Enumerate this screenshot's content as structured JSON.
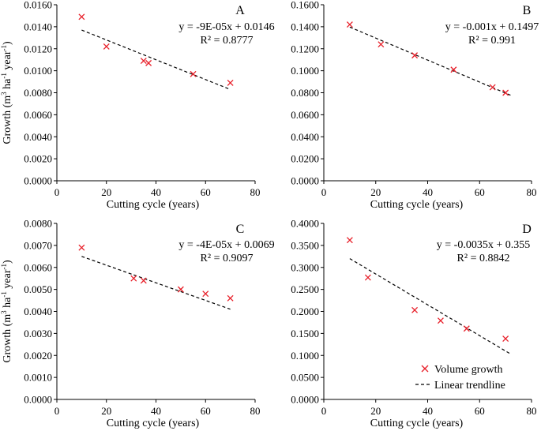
{
  "figure": {
    "ylabel_prefix": "Growth (m",
    "ylabel_sup3": "3",
    "ylabel_mid": " ha",
    "ylabel_supinv1": "-1",
    "ylabel_mid2": " year",
    "ylabel_end": ")",
    "legend": {
      "marker_label": "Volume growth",
      "line_label": "Linear trendline",
      "placement": "bottom-right of panel D"
    }
  },
  "chart_data": [
    {
      "type": "scatter",
      "panel": "A",
      "xlabel": "Cutting cycle (years)",
      "ylabel": "Growth (m3 ha-1 year-1)",
      "xlim": [
        0,
        80
      ],
      "ylim": [
        0,
        0.016
      ],
      "xticks": [
        "0",
        "20",
        "40",
        "60",
        "80"
      ],
      "yticks": [
        "0.0000",
        "0.0020",
        "0.0040",
        "0.0060",
        "0.0080",
        "0.0100",
        "0.0120",
        "0.0140",
        "0.0160"
      ],
      "series": [
        {
          "name": "Volume growth",
          "marker": "x",
          "x": [
            10,
            20,
            35,
            37,
            55,
            70
          ],
          "y": [
            0.0149,
            0.0122,
            0.0109,
            0.0107,
            0.0097,
            0.0089
          ]
        }
      ],
      "trendline": {
        "name": "Linear trendline",
        "slope": -9e-05,
        "intercept": 0.0146,
        "x_range": [
          10,
          70
        ]
      },
      "equation": "y = -9E-05x + 0.0146",
      "r2": "R² = 0.8777",
      "grid": false
    },
    {
      "type": "scatter",
      "panel": "B",
      "xlabel": "Cutting cycle (years)",
      "ylabel": "",
      "xlim": [
        0,
        80
      ],
      "ylim": [
        0,
        0.16
      ],
      "xticks": [
        "0",
        "20",
        "40",
        "60",
        "80"
      ],
      "yticks": [
        "0.0000",
        "0.0200",
        "0.0400",
        "0.0600",
        "0.0800",
        "0.1000",
        "0.1200",
        "0.1400",
        "0.1600"
      ],
      "series": [
        {
          "name": "Volume growth",
          "marker": "x",
          "x": [
            10,
            22,
            35,
            50,
            65,
            70
          ],
          "y": [
            0.142,
            0.124,
            0.114,
            0.101,
            0.085,
            0.08
          ]
        }
      ],
      "trendline": {
        "name": "Linear trendline",
        "slope": -0.001,
        "intercept": 0.1497,
        "x_range": [
          10,
          72
        ]
      },
      "equation": "y = -0.001x + 0.1497",
      "r2": "R² = 0.991",
      "grid": false
    },
    {
      "type": "scatter",
      "panel": "C",
      "xlabel": "Cutting cycle (years)",
      "ylabel": "Growth (m3 ha-1 year-1)",
      "xlim": [
        0,
        80
      ],
      "ylim": [
        0,
        0.008
      ],
      "xticks": [
        "0",
        "20",
        "40",
        "60",
        "80"
      ],
      "yticks": [
        "0.0000",
        "0.0010",
        "0.0020",
        "0.0030",
        "0.0040",
        "0.0050",
        "0.0060",
        "0.0070",
        "0.0080"
      ],
      "series": [
        {
          "name": "Volume growth",
          "marker": "x",
          "x": [
            10,
            31,
            35,
            50,
            60,
            70
          ],
          "y": [
            0.0069,
            0.0055,
            0.0054,
            0.005,
            0.0048,
            0.0046
          ]
        }
      ],
      "trendline": {
        "name": "Linear trendline",
        "slope": -4e-05,
        "intercept": 0.0069,
        "x_range": [
          10,
          70
        ]
      },
      "equation": "y = -4E-05x + 0.0069",
      "r2": "R² = 0.9097",
      "grid": false
    },
    {
      "type": "scatter",
      "panel": "D",
      "xlabel": "Cutting cycle (years)",
      "ylabel": "",
      "xlim": [
        0,
        80
      ],
      "ylim": [
        0,
        0.4
      ],
      "xticks": [
        "0",
        "20",
        "40",
        "60",
        "80"
      ],
      "yticks": [
        "0.0000",
        "0.0500",
        "0.1000",
        "0.1500",
        "0.2000",
        "0.2500",
        "0.3000",
        "0.3500",
        "0.4000"
      ],
      "series": [
        {
          "name": "Volume growth",
          "marker": "x",
          "x": [
            10,
            17,
            35,
            45,
            55,
            70
          ],
          "y": [
            0.362,
            0.277,
            0.203,
            0.179,
            0.161,
            0.138
          ]
        }
      ],
      "trendline": {
        "name": "Linear trendline",
        "slope": -0.0035,
        "intercept": 0.355,
        "x_range": [
          10,
          72
        ]
      },
      "equation": "y = -0.0035x + 0.355",
      "r2": "R² = 0.8842",
      "grid": false
    }
  ],
  "colors": {
    "marker": "#e8202a",
    "trendline": "#000000",
    "axis": "#000000"
  }
}
